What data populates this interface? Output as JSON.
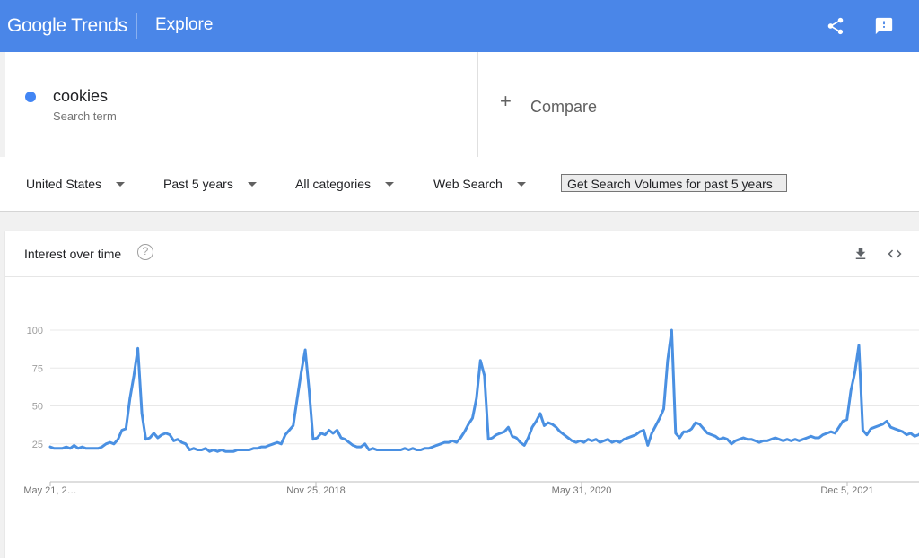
{
  "header": {
    "logo": "Google Trends",
    "section": "Explore",
    "share_icon": "share-icon",
    "feedback_icon": "feedback-icon"
  },
  "search_term": {
    "name": "cookies",
    "subtitle": "Search term",
    "color": "#4285f4"
  },
  "compare": {
    "label": "Compare",
    "icon": "plus-icon"
  },
  "filters": {
    "region": "United States",
    "time_range": "Past 5 years",
    "category": "All categories",
    "search_type": "Web Search",
    "volume_button": "Get Search Volumes for past 5 years"
  },
  "card": {
    "title": "Interest over time",
    "help_icon": "?",
    "download_icon": "download-icon",
    "embed_icon": "embed-icon"
  },
  "colors": {
    "header": "#4a86e8",
    "series": "#4a90e2"
  },
  "chart_data": {
    "type": "line",
    "title": "",
    "xlabel": "",
    "ylabel": "",
    "ylim": [
      0,
      100
    ],
    "yticks": [
      25,
      50,
      75,
      100
    ],
    "grid": true,
    "x_tick_labels": [
      "May 21, 2…",
      "Nov 25, 2018",
      "May 31, 2020",
      "Dec 5, 2021"
    ],
    "series": [
      {
        "values": [
          23,
          22,
          22,
          22,
          23,
          22,
          24,
          22,
          23,
          22,
          22,
          22,
          22,
          23,
          25,
          26,
          25,
          28,
          34,
          35,
          55,
          70,
          88,
          45,
          28,
          29,
          32,
          29,
          31,
          32,
          31,
          27,
          28,
          26,
          25,
          21,
          22,
          21,
          21,
          22,
          20,
          21,
          20,
          21,
          20,
          20,
          20,
          21,
          21,
          21,
          21,
          22,
          22,
          23,
          23,
          24,
          25,
          26,
          25,
          31,
          34,
          37,
          55,
          72,
          87,
          60,
          28,
          29,
          32,
          31,
          34,
          32,
          34,
          29,
          28,
          26,
          24,
          23,
          23,
          25,
          21,
          22,
          21,
          21,
          21,
          21,
          21,
          21,
          21,
          22,
          21,
          22,
          21,
          21,
          22,
          22,
          23,
          24,
          25,
          26,
          26,
          27,
          26,
          29,
          33,
          38,
          42,
          55,
          80,
          70,
          28,
          29,
          31,
          32,
          33,
          36,
          30,
          29,
          26,
          24,
          29,
          36,
          40,
          45,
          37,
          39,
          38,
          36,
          33,
          31,
          29,
          27,
          26,
          27,
          26,
          28,
          27,
          28,
          26,
          27,
          28,
          26,
          27,
          26,
          28,
          29,
          30,
          31,
          33,
          34,
          24,
          32,
          37,
          42,
          48,
          80,
          100,
          32,
          29,
          33,
          33,
          35,
          39,
          38,
          35,
          32,
          31,
          30,
          28,
          29,
          28,
          25,
          27,
          28,
          29,
          28,
          28,
          27,
          26,
          27,
          27,
          28,
          29,
          28,
          27,
          28,
          27,
          28,
          27,
          28,
          29,
          30,
          29,
          29,
          31,
          32,
          33,
          32,
          36,
          40,
          41,
          60,
          72,
          90,
          34,
          31,
          35,
          36,
          37,
          38,
          40,
          36,
          35,
          34,
          33,
          31,
          32,
          30,
          31,
          33
        ]
      }
    ]
  }
}
